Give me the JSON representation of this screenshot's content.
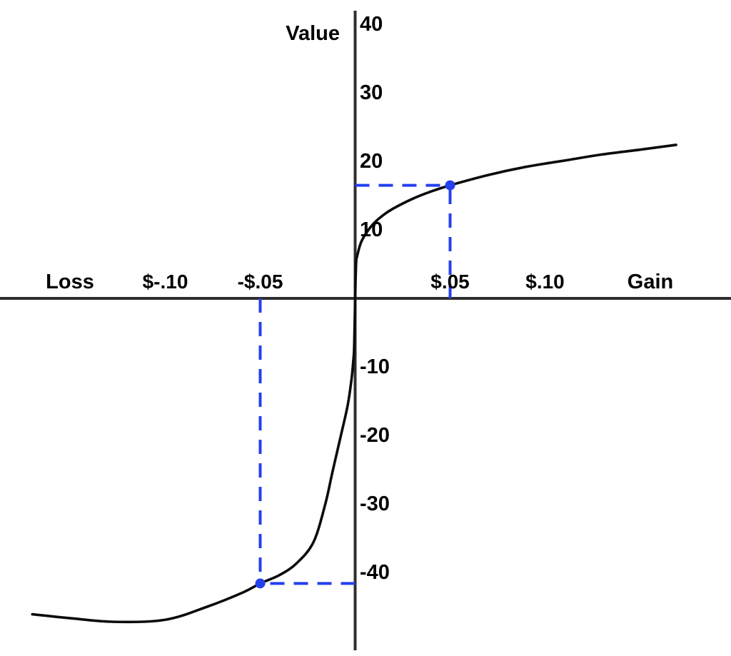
{
  "colors": {
    "background": "#ffffff",
    "axis": "#2e2e2e",
    "curve": "#0b0b0b",
    "annotation_blue": "#2540ee",
    "text": "#000000"
  },
  "chart_data": {
    "type": "line",
    "title": "Value",
    "xlabel_negative": "Loss",
    "xlabel_positive": "Gain",
    "ylabel": "Value",
    "xlim": [
      -0.19,
      0.198
    ],
    "ylim": [
      -52,
      42
    ],
    "grid": false,
    "legend": "none",
    "x_ticks": [
      {
        "value": -0.1,
        "label": "$-.10"
      },
      {
        "value": -0.05,
        "label": "-$.05"
      },
      {
        "value": 0.05,
        "label": "$.05"
      },
      {
        "value": 0.1,
        "label": "$.10"
      }
    ],
    "y_ticks": [
      {
        "value": 40,
        "label": "40"
      },
      {
        "value": 30,
        "label": "30"
      },
      {
        "value": 20,
        "label": "20"
      },
      {
        "value": 10,
        "label": "10"
      },
      {
        "value": -10,
        "label": "-10"
      },
      {
        "value": -20,
        "label": "-20"
      },
      {
        "value": -30,
        "label": "-30"
      },
      {
        "value": -40,
        "label": "-40"
      }
    ],
    "series": [
      {
        "name": "prospect-theory-value-function",
        "color": "#0b0b0b",
        "points": [
          [
            -0.17,
            -46.1
          ],
          [
            -0.149,
            -46.7
          ],
          [
            -0.127,
            -47.2
          ],
          [
            -0.1,
            -46.9
          ],
          [
            -0.078,
            -45.0
          ],
          [
            -0.059,
            -42.9
          ],
          [
            -0.05,
            -41.6
          ],
          [
            -0.04,
            -40.4
          ],
          [
            -0.031,
            -38.7
          ],
          [
            -0.022,
            -35.6
          ],
          [
            -0.0158,
            -30.1
          ],
          [
            -0.012,
            -25.4
          ],
          [
            -0.0075,
            -20.0
          ],
          [
            -0.004,
            -15.7
          ],
          [
            -0.002,
            -12.0
          ],
          [
            -0.001,
            -9.2
          ],
          [
            -0.0005,
            -7.0
          ],
          [
            0,
            0
          ],
          [
            0.0005,
            5.1
          ],
          [
            0.001,
            6.1
          ],
          [
            0.003,
            8.1
          ],
          [
            0.006,
            9.6
          ],
          [
            0.01,
            11.0
          ],
          [
            0.015,
            12.2
          ],
          [
            0.02,
            13.1
          ],
          [
            0.03,
            14.5
          ],
          [
            0.04,
            15.6
          ],
          [
            0.05,
            16.5
          ],
          [
            0.07,
            18.0
          ],
          [
            0.09,
            19.2
          ],
          [
            0.11,
            20.1
          ],
          [
            0.13,
            21.0
          ],
          [
            0.15,
            21.7
          ],
          [
            0.169,
            22.4
          ]
        ]
      }
    ],
    "annotations": [
      {
        "name": "gain-reference",
        "x": 0.05,
        "value": 16.5,
        "color": "#2540ee",
        "style": "dashed"
      },
      {
        "name": "loss-reference",
        "x": -0.05,
        "value": -41.6,
        "color": "#2540ee",
        "style": "dashed"
      }
    ]
  }
}
